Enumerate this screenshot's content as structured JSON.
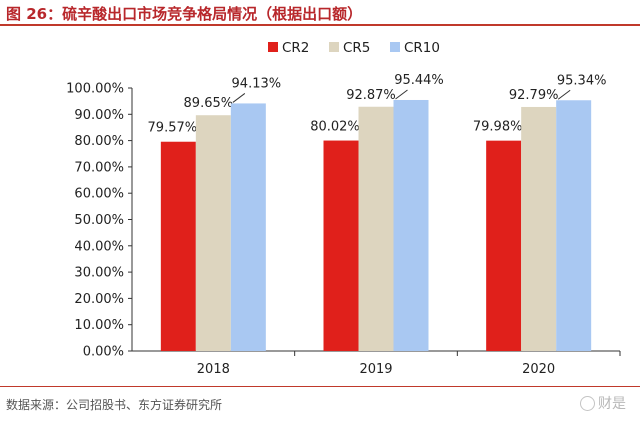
{
  "header": {
    "title": "图 26：硫辛酸出口市场竞争格局情况（根据出口额）"
  },
  "footer": {
    "source": "数据来源：公司招股书、东方证券研究所",
    "watermark": "财是"
  },
  "colors": {
    "accent": "#c0392b",
    "cr2": "#e0201b",
    "cr5": "#ddd5bf",
    "cr10": "#a9c8f2"
  },
  "chart_data": {
    "type": "bar",
    "categories": [
      "2018",
      "2019",
      "2020"
    ],
    "series": [
      {
        "name": "CR2",
        "values": [
          79.57,
          80.02,
          79.98
        ],
        "labels": [
          "79.57%",
          "80.02%",
          "79.98%"
        ],
        "color": "#e0201b"
      },
      {
        "name": "CR5",
        "values": [
          89.65,
          92.87,
          92.79
        ],
        "labels": [
          "89.65%",
          "92.87%",
          "92.79%"
        ],
        "color": "#ddd5bf"
      },
      {
        "name": "CR10",
        "values": [
          94.13,
          95.44,
          95.34
        ],
        "labels": [
          "94.13%",
          "95.44%",
          "95.34%"
        ],
        "color": "#a9c8f2"
      }
    ],
    "yticks": [
      "0.00%",
      "10.00%",
      "20.00%",
      "30.00%",
      "40.00%",
      "50.00%",
      "60.00%",
      "70.00%",
      "80.00%",
      "90.00%",
      "100.00%"
    ],
    "ylim": [
      0,
      100
    ],
    "xlabel": "",
    "ylabel": "",
    "grid": false,
    "legend_position": "top"
  }
}
